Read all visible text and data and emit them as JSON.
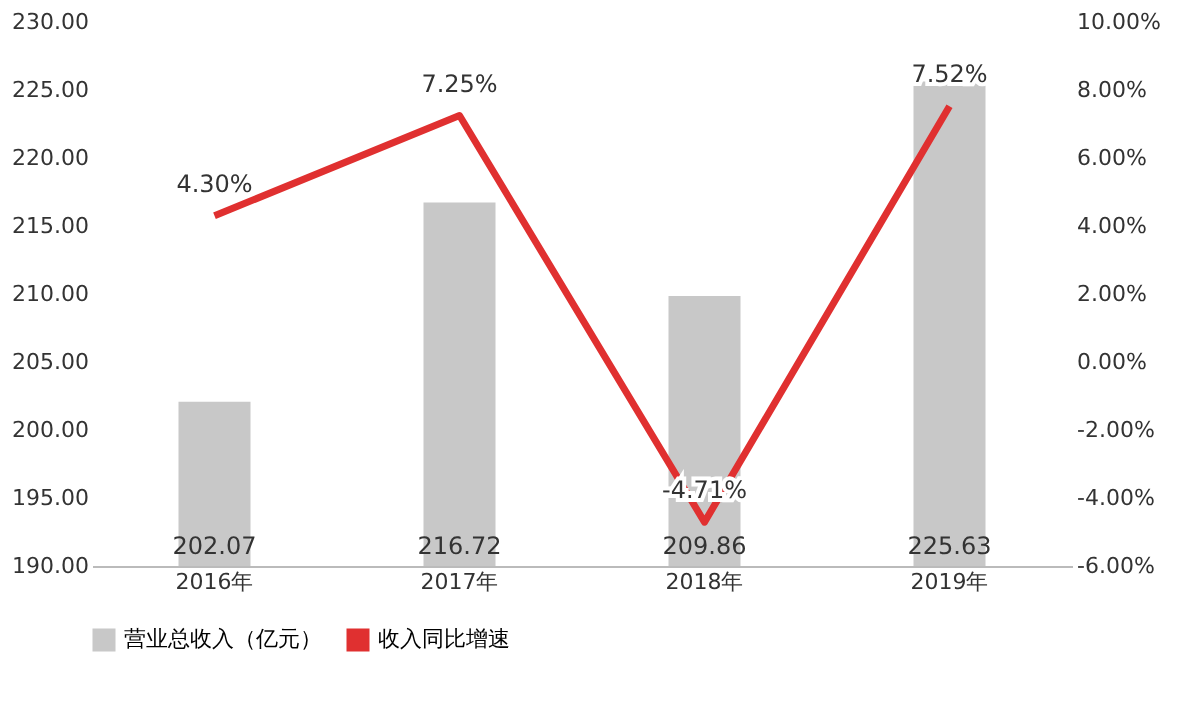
{
  "chart_data": {
    "type": "bar",
    "categories": [
      "2016年",
      "2017年",
      "2018年",
      "2019年"
    ],
    "series": [
      {
        "name": "营业总收入（亿元）",
        "color": "#c8c8c8",
        "values": [
          202.07,
          216.72,
          209.86,
          225.63
        ],
        "value_labels": [
          "202.07",
          "216.72",
          "209.86",
          "225.63"
        ]
      },
      {
        "name": "收入同比增速",
        "type": "line",
        "axis": "y2",
        "color": "#e03030",
        "values": [
          4.3,
          7.25,
          -4.71,
          7.52
        ],
        "value_labels": [
          "4.30%",
          "7.25%",
          "-4.71%",
          "7.52%"
        ]
      }
    ],
    "ylim": [
      190,
      230
    ],
    "yticks": [
      {
        "value": 190,
        "label": "190.00"
      },
      {
        "value": 195,
        "label": "195.00"
      },
      {
        "value": 200,
        "label": "200.00"
      },
      {
        "value": 205,
        "label": "205.00"
      },
      {
        "value": 210,
        "label": "210.00"
      },
      {
        "value": 215,
        "label": "215.00"
      },
      {
        "value": 220,
        "label": "220.00"
      },
      {
        "value": 225,
        "label": "225.00"
      },
      {
        "value": 230,
        "label": "230.00"
      }
    ],
    "y2lim": [
      -6,
      10
    ],
    "y2ticks": [
      {
        "value": -6,
        "label": "-6.00%"
      },
      {
        "value": -4,
        "label": "-4.00%"
      },
      {
        "value": -2,
        "label": "-2.00%"
      },
      {
        "value": 0,
        "label": "0.00%"
      },
      {
        "value": 2,
        "label": "2.00%"
      },
      {
        "value": 4,
        "label": "4.00%"
      },
      {
        "value": 6,
        "label": "6.00%"
      },
      {
        "value": 8,
        "label": "8.00%"
      },
      {
        "value": 10,
        "label": "10.00%"
      }
    ],
    "grid": false,
    "legend": "bottom",
    "line_style": "solid",
    "marker": "none"
  }
}
